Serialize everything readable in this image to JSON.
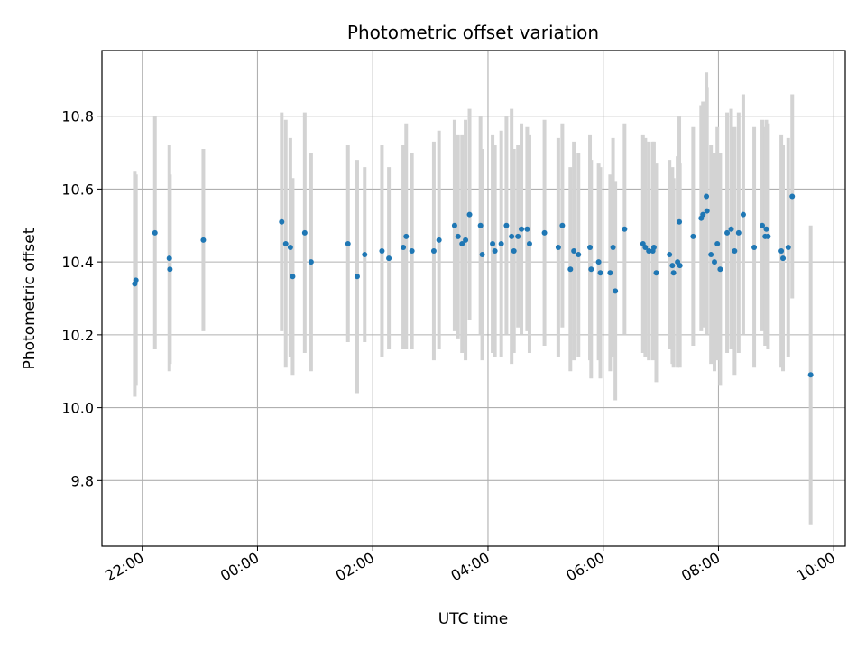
{
  "chart_data": {
    "type": "scatter",
    "title": "Photometric offset variation",
    "xlabel": "UTC time",
    "ylabel": "Photometric offset",
    "x_ticks": [
      {
        "label": "22:00",
        "hours": -2
      },
      {
        "label": "00:00",
        "hours": 0
      },
      {
        "label": "02:00",
        "hours": 2
      },
      {
        "label": "04:00",
        "hours": 4
      },
      {
        "label": "06:00",
        "hours": 6
      },
      {
        "label": "08:00",
        "hours": 8
      },
      {
        "label": "10:00",
        "hours": 10
      }
    ],
    "y_ticks": [
      "9.8",
      "10.0",
      "10.2",
      "10.4",
      "10.6",
      "10.8"
    ],
    "xlim": [
      -2.7,
      10.2
    ],
    "ylim": [
      9.62,
      10.98
    ],
    "grid": true,
    "colors": {
      "points": "#1f77b4",
      "errorbars": "#d3d3d3",
      "grid": "#b0b0b0"
    },
    "series": [
      {
        "x_unit": "hours from 00:00 UTC",
        "points": [
          [
            -2.13,
            10.34,
            0.31
          ],
          [
            -2.11,
            10.35,
            0.29
          ],
          [
            -1.78,
            10.48,
            0.32
          ],
          [
            -1.53,
            10.41,
            0.31
          ],
          [
            -1.52,
            10.38,
            0.26
          ],
          [
            -0.94,
            10.46,
            0.25
          ],
          [
            0.42,
            10.51,
            0.3
          ],
          [
            0.49,
            10.45,
            0.34
          ],
          [
            0.57,
            10.44,
            0.3
          ],
          [
            0.61,
            10.36,
            0.27
          ],
          [
            0.82,
            10.48,
            0.33
          ],
          [
            0.93,
            10.4,
            0.3
          ],
          [
            1.57,
            10.45,
            0.27
          ],
          [
            1.73,
            10.36,
            0.32
          ],
          [
            1.86,
            10.42,
            0.24
          ],
          [
            2.16,
            10.43,
            0.29
          ],
          [
            2.28,
            10.41,
            0.25
          ],
          [
            2.53,
            10.44,
            0.28
          ],
          [
            2.58,
            10.47,
            0.31
          ],
          [
            2.68,
            10.43,
            0.27
          ],
          [
            3.06,
            10.43,
            0.3
          ],
          [
            3.15,
            10.46,
            0.3
          ],
          [
            3.42,
            10.5,
            0.29
          ],
          [
            3.48,
            10.47,
            0.28
          ],
          [
            3.55,
            10.45,
            0.3
          ],
          [
            3.61,
            10.46,
            0.33
          ],
          [
            3.68,
            10.53,
            0.29
          ],
          [
            3.87,
            10.5,
            0.3
          ],
          [
            3.9,
            10.42,
            0.29
          ],
          [
            4.08,
            10.45,
            0.3
          ],
          [
            4.12,
            10.43,
            0.29
          ],
          [
            4.23,
            10.45,
            0.31
          ],
          [
            4.32,
            10.5,
            0.3
          ],
          [
            4.41,
            10.47,
            0.35
          ],
          [
            4.45,
            10.43,
            0.28
          ],
          [
            4.52,
            10.47,
            0.25
          ],
          [
            4.58,
            10.49,
            0.29
          ],
          [
            4.68,
            10.49,
            0.28
          ],
          [
            4.72,
            10.45,
            0.3
          ],
          [
            4.98,
            10.48,
            0.31
          ],
          [
            5.22,
            10.44,
            0.3
          ],
          [
            5.29,
            10.5,
            0.28
          ],
          [
            5.43,
            10.38,
            0.28
          ],
          [
            5.49,
            10.43,
            0.3
          ],
          [
            5.57,
            10.42,
            0.28
          ],
          [
            5.77,
            10.44,
            0.31
          ],
          [
            5.79,
            10.38,
            0.3
          ],
          [
            5.92,
            10.4,
            0.27
          ],
          [
            5.95,
            10.37,
            0.29
          ],
          [
            6.12,
            10.37,
            0.27
          ],
          [
            6.17,
            10.44,
            0.3
          ],
          [
            6.21,
            10.32,
            0.3
          ],
          [
            6.37,
            10.49,
            0.29
          ],
          [
            6.69,
            10.45,
            0.3
          ],
          [
            6.73,
            10.44,
            0.3
          ],
          [
            6.79,
            10.43,
            0.3
          ],
          [
            6.86,
            10.43,
            0.3
          ],
          [
            6.88,
            10.44,
            0.29
          ],
          [
            6.92,
            10.37,
            0.3
          ],
          [
            7.15,
            10.42,
            0.26
          ],
          [
            7.2,
            10.39,
            0.27
          ],
          [
            7.22,
            10.37,
            0.26
          ],
          [
            7.29,
            10.4,
            0.29
          ],
          [
            7.32,
            10.51,
            0.29
          ],
          [
            7.33,
            10.39,
            0.28
          ],
          [
            7.56,
            10.47,
            0.3
          ],
          [
            7.7,
            10.52,
            0.31
          ],
          [
            7.73,
            10.53,
            0.31
          ],
          [
            7.79,
            10.58,
            0.34
          ],
          [
            7.8,
            10.54,
            0.34
          ],
          [
            7.87,
            10.42,
            0.3
          ],
          [
            7.93,
            10.4,
            0.3
          ],
          [
            7.98,
            10.45,
            0.32
          ],
          [
            8.03,
            10.38,
            0.32
          ],
          [
            8.15,
            10.48,
            0.33
          ],
          [
            8.22,
            10.49,
            0.33
          ],
          [
            8.28,
            10.43,
            0.34
          ],
          [
            8.35,
            10.48,
            0.33
          ],
          [
            8.43,
            10.53,
            0.33
          ],
          [
            8.62,
            10.44,
            0.33
          ],
          [
            8.76,
            10.5,
            0.29
          ],
          [
            8.81,
            10.47,
            0.3
          ],
          [
            8.83,
            10.49,
            0.3
          ],
          [
            8.86,
            10.47,
            0.31
          ],
          [
            9.09,
            10.43,
            0.32
          ],
          [
            9.12,
            10.41,
            0.31
          ],
          [
            9.21,
            10.44,
            0.3
          ],
          [
            9.28,
            10.58,
            0.28
          ],
          [
            9.6,
            10.09,
            0.41
          ]
        ]
      }
    ]
  }
}
